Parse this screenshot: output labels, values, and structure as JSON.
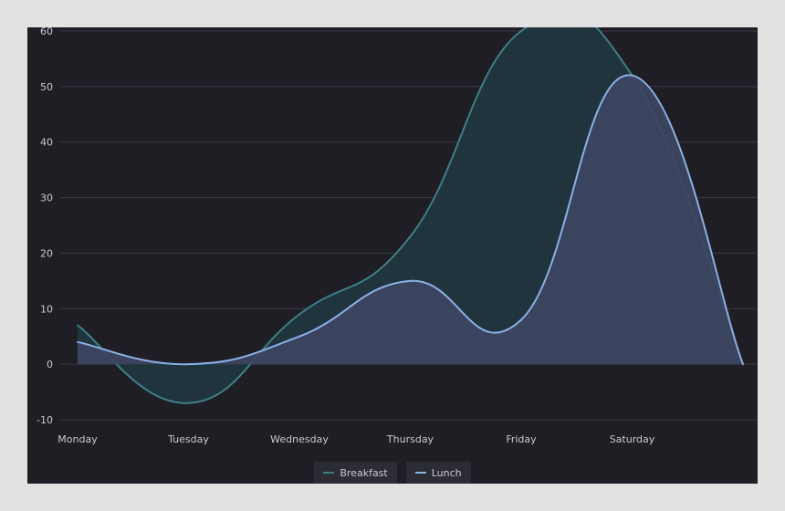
{
  "chart_data": {
    "type": "area",
    "categories": [
      "Monday",
      "Tuesday",
      "Wednesday",
      "Thursday",
      "Friday",
      "Saturday",
      ""
    ],
    "y_ticks": [
      60,
      50,
      40,
      30,
      20,
      10,
      0,
      -10
    ],
    "ylim": [
      -10,
      60
    ],
    "grid": true,
    "legend_position": "bottom-center",
    "series": [
      {
        "name": "Breakfast",
        "values": [
          7,
          -7,
          9,
          23,
          60,
          52,
          0
        ],
        "color": "#3e7f86",
        "fill": "#213640"
      },
      {
        "name": "Lunch",
        "values": [
          4,
          0,
          5,
          15,
          8,
          52,
          0
        ],
        "color": "#8ab0e6",
        "fill": "#3d4561"
      }
    ]
  }
}
